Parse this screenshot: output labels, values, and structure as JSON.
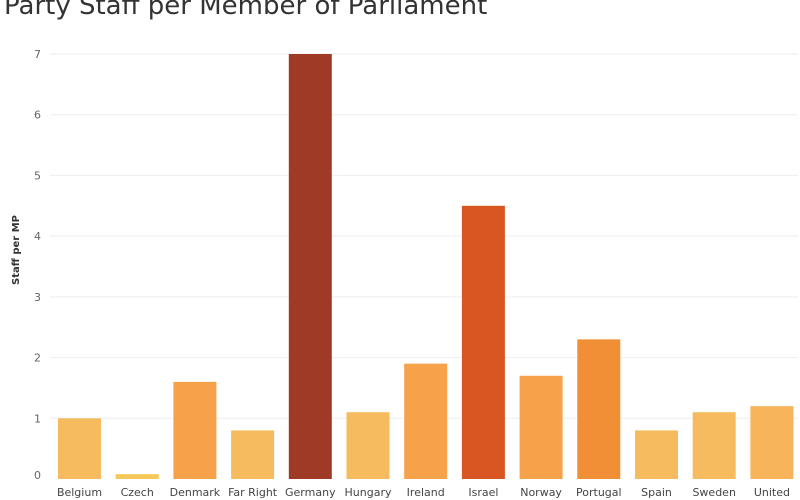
{
  "chart_data": {
    "type": "bar",
    "title": "Party Staff per Member of Parliament",
    "xlabel": "",
    "ylabel": "Staff per MP",
    "ylim": [
      0,
      7.3
    ],
    "yticks": [
      0,
      1,
      2,
      3,
      4,
      5,
      6,
      7
    ],
    "grid": true,
    "categories": [
      "Belgium",
      "Czech",
      "Denmark",
      "Far Right",
      "Germany",
      "Hungary",
      "Ireland",
      "Israel",
      "Norway",
      "Portugal",
      "Spain",
      "Sweden",
      "United"
    ],
    "values": [
      1.0,
      0.08,
      1.6,
      0.8,
      7.0,
      1.1,
      1.9,
      4.5,
      1.7,
      2.3,
      0.8,
      1.1,
      1.2
    ],
    "colors": [
      "#f7bb5f",
      "#f6c85a",
      "#f6a24a",
      "#f7bb5f",
      "#9e3a26",
      "#f7bb5f",
      "#f6a24a",
      "#d95622",
      "#f6a24a",
      "#f08f35",
      "#f7bb5f",
      "#f7bb5f",
      "#f7b45a"
    ]
  }
}
